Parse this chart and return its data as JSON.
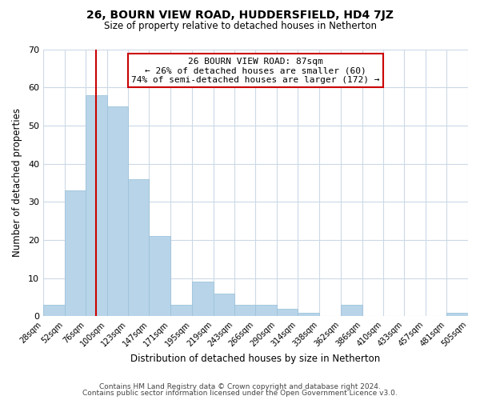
{
  "title": "26, BOURN VIEW ROAD, HUDDERSFIELD, HD4 7JZ",
  "subtitle": "Size of property relative to detached houses in Netherton",
  "xlabel": "Distribution of detached houses by size in Netherton",
  "ylabel": "Number of detached properties",
  "bar_color": "#b8d4e8",
  "bar_edge_color": "#9ec4dc",
  "vline_color": "#cc0000",
  "vline_x": 87,
  "bins": [
    28,
    52,
    76,
    100,
    123,
    147,
    171,
    195,
    219,
    243,
    266,
    290,
    314,
    338,
    362,
    386,
    410,
    433,
    457,
    481,
    505
  ],
  "bin_labels": [
    "28sqm",
    "52sqm",
    "76sqm",
    "100sqm",
    "123sqm",
    "147sqm",
    "171sqm",
    "195sqm",
    "219sqm",
    "243sqm",
    "266sqm",
    "290sqm",
    "314sqm",
    "338sqm",
    "362sqm",
    "386sqm",
    "410sqm",
    "433sqm",
    "457sqm",
    "481sqm",
    "505sqm"
  ],
  "counts": [
    3,
    33,
    58,
    55,
    36,
    21,
    3,
    9,
    6,
    3,
    3,
    2,
    1,
    0,
    3,
    0,
    0,
    0,
    0,
    1
  ],
  "ylim": [
    0,
    70
  ],
  "yticks": [
    0,
    10,
    20,
    30,
    40,
    50,
    60,
    70
  ],
  "annotation_title": "26 BOURN VIEW ROAD: 87sqm",
  "annotation_line1": "← 26% of detached houses are smaller (60)",
  "annotation_line2": "74% of semi-detached houses are larger (172) →",
  "annotation_box_color": "#ffffff",
  "annotation_box_edge": "#cc0000",
  "footer1": "Contains HM Land Registry data © Crown copyright and database right 2024.",
  "footer2": "Contains public sector information licensed under the Open Government Licence v3.0.",
  "background_color": "#ffffff",
  "grid_color": "#ccd9e8"
}
